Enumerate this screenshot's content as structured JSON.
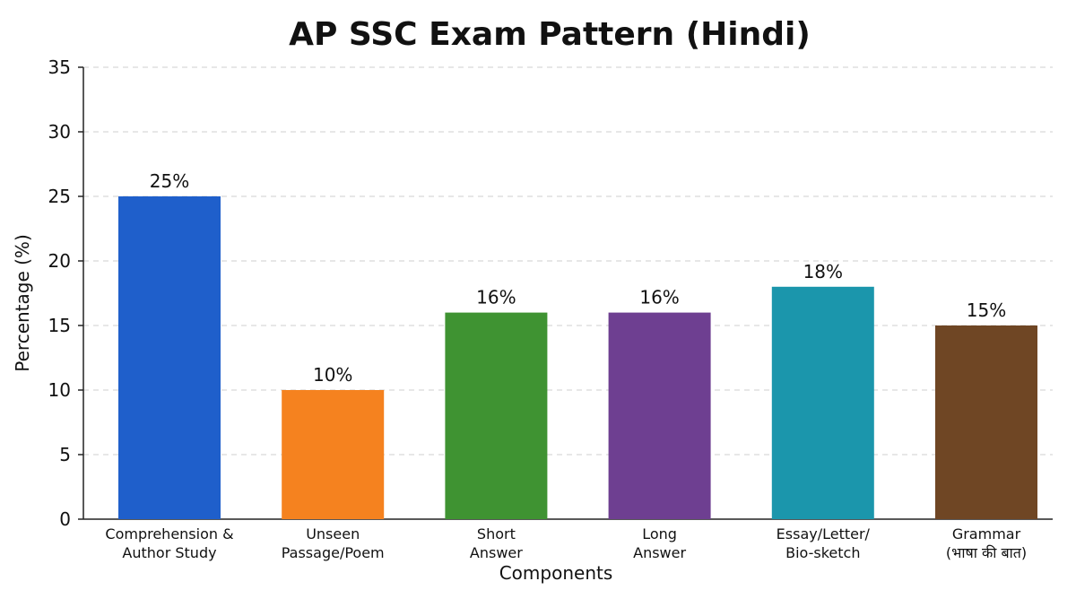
{
  "chart_data": {
    "type": "bar",
    "title": "AP SSC Exam Pattern (Hindi)",
    "xlabel": "Components",
    "ylabel": "Percentage (%)",
    "ylim": [
      0,
      35
    ],
    "yticks": [
      0,
      5,
      10,
      15,
      20,
      25,
      30,
      35
    ],
    "grid": true,
    "categories": [
      [
        "Comprehension &",
        "Author Study"
      ],
      [
        "Unseen",
        "Passage/Poem"
      ],
      [
        "Short",
        "Answer"
      ],
      [
        "Long",
        "Answer"
      ],
      [
        "Essay/Letter/",
        "Bio-sketch"
      ],
      [
        "Grammar",
        "(भाषा की बात)"
      ]
    ],
    "values": [
      25,
      10,
      16,
      16,
      18,
      15
    ],
    "data_labels": [
      "25%",
      "10%",
      "16%",
      "16%",
      "18%",
      "15%"
    ],
    "colors": [
      "#1f5fcb",
      "#f5821f",
      "#3f9332",
      "#6e3f91",
      "#1b96ac",
      "#6f4624"
    ]
  }
}
